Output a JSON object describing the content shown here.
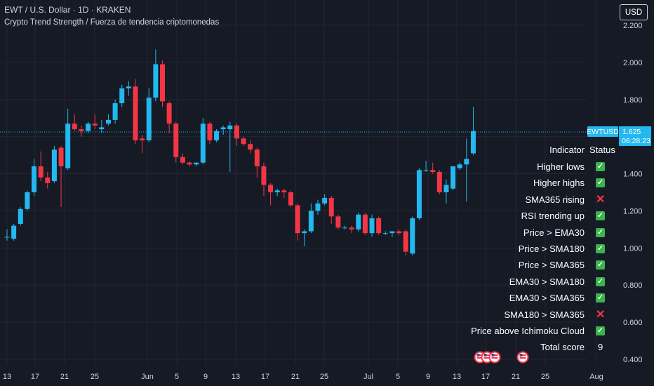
{
  "header": {
    "symbol_line": "EWT / U.S. Dollar · 1D · KRAKEN",
    "indicator_line": "Crypto Trend Strength / Fuerza de tendencia criptomonedas"
  },
  "currency_button": "USD",
  "price_badge": {
    "symbol": "EWTUSD",
    "price": "1.625",
    "countdown": "06:28:23"
  },
  "colors": {
    "background": "#161a25",
    "up": "#22b8f0",
    "down": "#f23645",
    "grid": "#232735",
    "price_line": "#22b8f0",
    "check_bg": "#3bb44a",
    "cross": "#f23645"
  },
  "indicator_table": {
    "header": {
      "indicator": "Indicator",
      "status": "Status"
    },
    "rows": [
      {
        "label": "Higher lows",
        "status": "check"
      },
      {
        "label": "Higher highs",
        "status": "check"
      },
      {
        "label": "SMA365 rising",
        "status": "cross"
      },
      {
        "label": "RSI trending up",
        "status": "check"
      },
      {
        "label": "Price > EMA30",
        "status": "check"
      },
      {
        "label": "Price > SMA180",
        "status": "check"
      },
      {
        "label": "Price > SMA365",
        "status": "check"
      },
      {
        "label": "EMA30 > SMA180",
        "status": "check"
      },
      {
        "label": "EMA30 > SMA365",
        "status": "check"
      },
      {
        "label": "SMA180 > SMA365",
        "status": "cross"
      },
      {
        "label": "Price above Ichimoku Cloud",
        "status": "check"
      }
    ],
    "total": {
      "label": "Total score",
      "value": "9"
    }
  },
  "chart_data": {
    "type": "candlestick",
    "title": "EWT / U.S. Dollar · 1D · KRAKEN",
    "y_ticks": [
      "0.400",
      "0.600",
      "0.800",
      "1.000",
      "1.200",
      "1.400",
      "1.600",
      "1.800",
      "2.000",
      "2.200"
    ],
    "x_ticks": [
      "13",
      "17",
      "21",
      "25",
      "Jun",
      "5",
      "9",
      "13",
      "17",
      "21",
      "25",
      "Jul",
      "5",
      "9",
      "13",
      "17",
      "21",
      "25",
      "Aug"
    ],
    "ylim": [
      0.4,
      2.2
    ],
    "grid": true,
    "last_price": 1.625,
    "candles": [
      {
        "o": 1.06,
        "h": 1.1,
        "l": 1.04,
        "c": 1.06
      },
      {
        "o": 1.05,
        "h": 1.13,
        "l": 1.04,
        "c": 1.12
      },
      {
        "o": 1.13,
        "h": 1.22,
        "l": 1.12,
        "c": 1.21
      },
      {
        "o": 1.21,
        "h": 1.31,
        "l": 1.2,
        "c": 1.3
      },
      {
        "o": 1.3,
        "h": 1.48,
        "l": 1.28,
        "c": 1.44
      },
      {
        "o": 1.44,
        "h": 1.52,
        "l": 1.36,
        "c": 1.38
      },
      {
        "o": 1.38,
        "h": 1.41,
        "l": 1.32,
        "c": 1.35
      },
      {
        "o": 1.36,
        "h": 1.55,
        "l": 1.35,
        "c": 1.53
      },
      {
        "o": 1.54,
        "h": 1.55,
        "l": 1.22,
        "c": 1.44
      },
      {
        "o": 1.43,
        "h": 1.75,
        "l": 1.42,
        "c": 1.67
      },
      {
        "o": 1.67,
        "h": 1.72,
        "l": 1.63,
        "c": 1.64
      },
      {
        "o": 1.64,
        "h": 1.66,
        "l": 1.6,
        "c": 1.63
      },
      {
        "o": 1.63,
        "h": 1.68,
        "l": 1.62,
        "c": 1.67
      },
      {
        "o": 1.67,
        "h": 1.72,
        "l": 1.64,
        "c": 1.66
      },
      {
        "o": 1.64,
        "h": 1.69,
        "l": 1.62,
        "c": 1.65
      },
      {
        "o": 1.67,
        "h": 1.72,
        "l": 1.66,
        "c": 1.69
      },
      {
        "o": 1.69,
        "h": 1.8,
        "l": 1.67,
        "c": 1.78
      },
      {
        "o": 1.78,
        "h": 1.88,
        "l": 1.76,
        "c": 1.86
      },
      {
        "o": 1.86,
        "h": 1.9,
        "l": 1.82,
        "c": 1.87
      },
      {
        "o": 1.87,
        "h": 1.91,
        "l": 1.56,
        "c": 1.58
      },
      {
        "o": 1.59,
        "h": 1.61,
        "l": 1.51,
        "c": 1.58
      },
      {
        "o": 1.58,
        "h": 1.86,
        "l": 1.57,
        "c": 1.81
      },
      {
        "o": 1.81,
        "h": 2.07,
        "l": 1.79,
        "c": 1.99
      },
      {
        "o": 1.99,
        "h": 2.01,
        "l": 1.76,
        "c": 1.79
      },
      {
        "o": 1.78,
        "h": 1.79,
        "l": 1.62,
        "c": 1.67
      },
      {
        "o": 1.67,
        "h": 1.68,
        "l": 1.46,
        "c": 1.49
      },
      {
        "o": 1.49,
        "h": 1.51,
        "l": 1.45,
        "c": 1.46
      },
      {
        "o": 1.46,
        "h": 1.47,
        "l": 1.44,
        "c": 1.45
      },
      {
        "o": 1.45,
        "h": 1.46,
        "l": 1.44,
        "c": 1.46
      },
      {
        "o": 1.46,
        "h": 1.7,
        "l": 1.45,
        "c": 1.67
      },
      {
        "o": 1.67,
        "h": 1.68,
        "l": 1.56,
        "c": 1.58
      },
      {
        "o": 1.58,
        "h": 1.64,
        "l": 1.57,
        "c": 1.63
      },
      {
        "o": 1.64,
        "h": 1.66,
        "l": 1.61,
        "c": 1.65
      },
      {
        "o": 1.64,
        "h": 1.68,
        "l": 1.41,
        "c": 1.66
      },
      {
        "o": 1.66,
        "h": 1.67,
        "l": 1.55,
        "c": 1.59
      },
      {
        "o": 1.59,
        "h": 1.6,
        "l": 1.55,
        "c": 1.56
      },
      {
        "o": 1.56,
        "h": 1.58,
        "l": 1.51,
        "c": 1.53
      },
      {
        "o": 1.53,
        "h": 1.54,
        "l": 1.38,
        "c": 1.44
      },
      {
        "o": 1.44,
        "h": 1.46,
        "l": 1.28,
        "c": 1.34
      },
      {
        "o": 1.34,
        "h": 1.35,
        "l": 1.23,
        "c": 1.3
      },
      {
        "o": 1.3,
        "h": 1.32,
        "l": 1.28,
        "c": 1.31
      },
      {
        "o": 1.31,
        "h": 1.32,
        "l": 1.27,
        "c": 1.3
      },
      {
        "o": 1.3,
        "h": 1.31,
        "l": 1.22,
        "c": 1.23
      },
      {
        "o": 1.23,
        "h": 1.24,
        "l": 1.04,
        "c": 1.08
      },
      {
        "o": 1.08,
        "h": 1.1,
        "l": 1.01,
        "c": 1.09
      },
      {
        "o": 1.09,
        "h": 1.24,
        "l": 1.08,
        "c": 1.2
      },
      {
        "o": 1.2,
        "h": 1.26,
        "l": 1.18,
        "c": 1.24
      },
      {
        "o": 1.24,
        "h": 1.29,
        "l": 1.23,
        "c": 1.27
      },
      {
        "o": 1.27,
        "h": 1.28,
        "l": 1.13,
        "c": 1.17
      },
      {
        "o": 1.17,
        "h": 1.18,
        "l": 1.1,
        "c": 1.11
      },
      {
        "o": 1.11,
        "h": 1.12,
        "l": 1.1,
        "c": 1.11
      },
      {
        "o": 1.11,
        "h": 1.12,
        "l": 1.08,
        "c": 1.1
      },
      {
        "o": 1.1,
        "h": 1.19,
        "l": 1.09,
        "c": 1.18
      },
      {
        "o": 1.18,
        "h": 1.19,
        "l": 1.07,
        "c": 1.08
      },
      {
        "o": 1.08,
        "h": 1.18,
        "l": 1.06,
        "c": 1.16
      },
      {
        "o": 1.16,
        "h": 1.17,
        "l": 1.07,
        "c": 1.08
      },
      {
        "o": 1.08,
        "h": 1.09,
        "l": 1.07,
        "c": 1.08
      },
      {
        "o": 1.08,
        "h": 1.09,
        "l": 1.06,
        "c": 1.09
      },
      {
        "o": 1.09,
        "h": 1.1,
        "l": 1.07,
        "c": 1.08
      },
      {
        "o": 1.09,
        "h": 1.1,
        "l": 0.96,
        "c": 0.98
      },
      {
        "o": 0.97,
        "h": 1.17,
        "l": 0.96,
        "c": 1.16
      },
      {
        "o": 1.16,
        "h": 1.43,
        "l": 1.15,
        "c": 1.42
      },
      {
        "o": 1.42,
        "h": 1.47,
        "l": 1.41,
        "c": 1.42
      },
      {
        "o": 1.42,
        "h": 1.46,
        "l": 1.4,
        "c": 1.41
      },
      {
        "o": 1.41,
        "h": 1.42,
        "l": 1.29,
        "c": 1.3
      },
      {
        "o": 1.3,
        "h": 1.37,
        "l": 1.24,
        "c": 1.34
      },
      {
        "o": 1.32,
        "h": 1.44,
        "l": 1.31,
        "c": 1.44
      },
      {
        "o": 1.43,
        "h": 1.46,
        "l": 1.42,
        "c": 1.45
      },
      {
        "o": 1.45,
        "h": 1.59,
        "l": 1.25,
        "c": 1.48
      },
      {
        "o": 1.51,
        "h": 1.76,
        "l": 1.5,
        "c": 1.63
      }
    ]
  }
}
